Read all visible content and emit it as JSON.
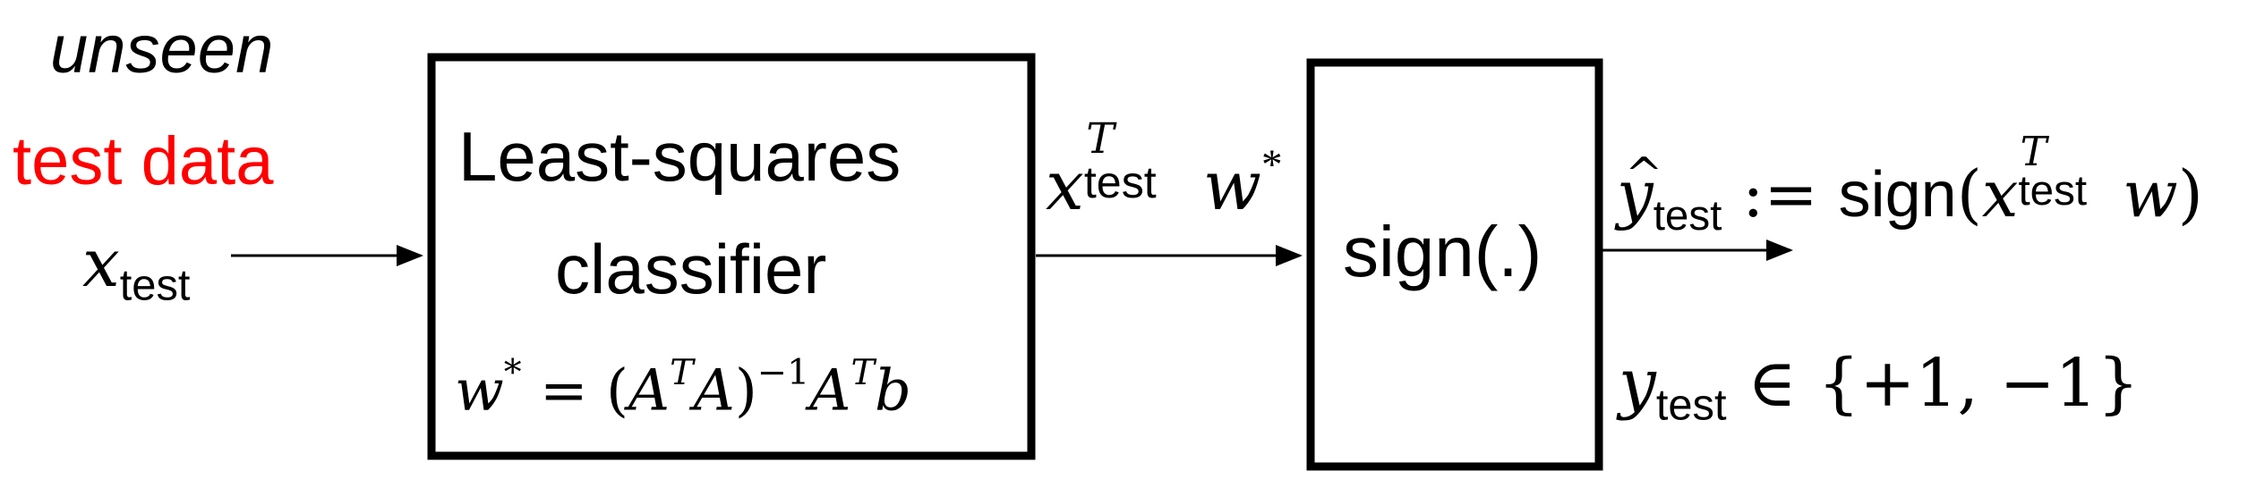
{
  "input_block": {
    "line1": "unseen",
    "line2": "test data",
    "line2_color": "#ff0000",
    "x_var": "x",
    "x_sub": "test"
  },
  "classifier_box": {
    "line1": "Least-squares",
    "line2": "classifier",
    "formula": {
      "w": "w",
      "star": "*",
      "eq": " = (",
      "A1": "A",
      "T1": "T",
      "A2": "A",
      "close": ")",
      "inv": "−1",
      "A3": "A",
      "T2": "T",
      "b": "b"
    }
  },
  "middle_signal": {
    "x": "x",
    "sub": "test",
    "sup": "T",
    "w": "w",
    "star": "*"
  },
  "sign_box": {
    "label": "sign(.)"
  },
  "output": {
    "yhat": "y",
    "hat": "^",
    "sub": "test",
    "assign": " := ",
    "sign_word": "sign",
    "open": "(",
    "x": "x",
    "x_sub": "test",
    "x_sup": "T",
    "w": "w",
    "close": ")"
  },
  "label_set": {
    "y": "y",
    "sub": "test",
    "rest": " ∈ {+1, −1}"
  }
}
